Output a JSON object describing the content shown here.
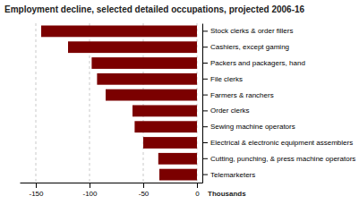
{
  "chart_data": {
    "type": "bar",
    "orientation": "horizontal",
    "title": "Employment decline, selected detailed occupations, projected 2006-16",
    "xlabel": "Thousands",
    "categories": [
      "Stock clerks & order fillers",
      "Cashiers, except gaming",
      "Packers and packagers, hand",
      "File clerks",
      "Farmers & ranchers",
      "Order clerks",
      "Sewing machine operators",
      "Electrical & electronic equipment assemblers",
      "Cutting, punching, & press machine operators",
      "Telemarketers"
    ],
    "values": [
      -145,
      -120,
      -98,
      -93,
      -85,
      -60,
      -58,
      -50,
      -36,
      -35
    ],
    "color": "#7B0000",
    "xlim": [
      -165,
      5
    ],
    "xticks": [
      -150,
      -100,
      -50,
      0
    ],
    "grid": true
  }
}
